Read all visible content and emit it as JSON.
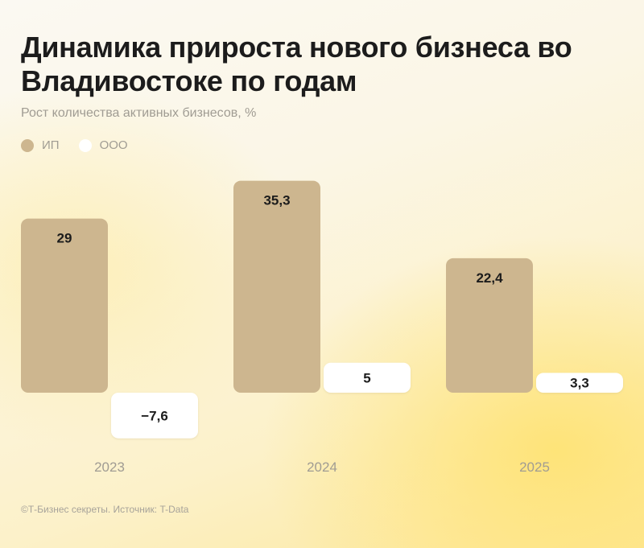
{
  "chart_data": {
    "type": "bar",
    "title": "Динамика прироста нового бизнеса во Владивостоке по годам",
    "subtitle": "Рост количества активных бизнесов, %",
    "categories": [
      "2023",
      "2024",
      "2025"
    ],
    "series": [
      {
        "name": "ИП",
        "color": "#cdb68f",
        "values": [
          29,
          35.3,
          22.4
        ],
        "labels": [
          "29",
          "35,3",
          "22,4"
        ]
      },
      {
        "name": "ООО",
        "color": "#ffffff",
        "values": [
          -7.6,
          5,
          3.3
        ],
        "labels": [
          "−7,6",
          "5",
          "3,3"
        ]
      }
    ],
    "legend_position": "top-left",
    "grid": false
  },
  "footer": "©Т-Бизнес секреты. Источник: T-Data"
}
